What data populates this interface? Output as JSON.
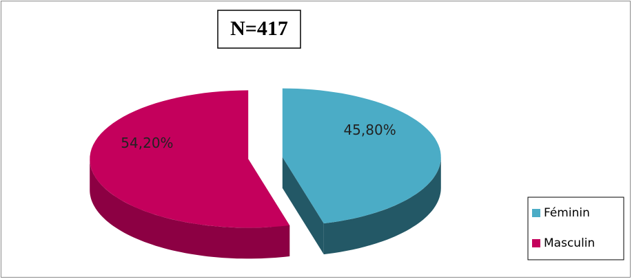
{
  "chart_data": {
    "type": "pie3d",
    "title": "N=417",
    "categories": [
      "Féminin",
      "Masculin"
    ],
    "values": [
      45.8,
      54.2
    ],
    "value_labels": [
      "45,80%",
      "54,20%"
    ],
    "colors": [
      "#4bacc6",
      "#c4005c"
    ],
    "side_colors": [
      "#235866",
      "#8c0043"
    ],
    "legend": "right"
  }
}
